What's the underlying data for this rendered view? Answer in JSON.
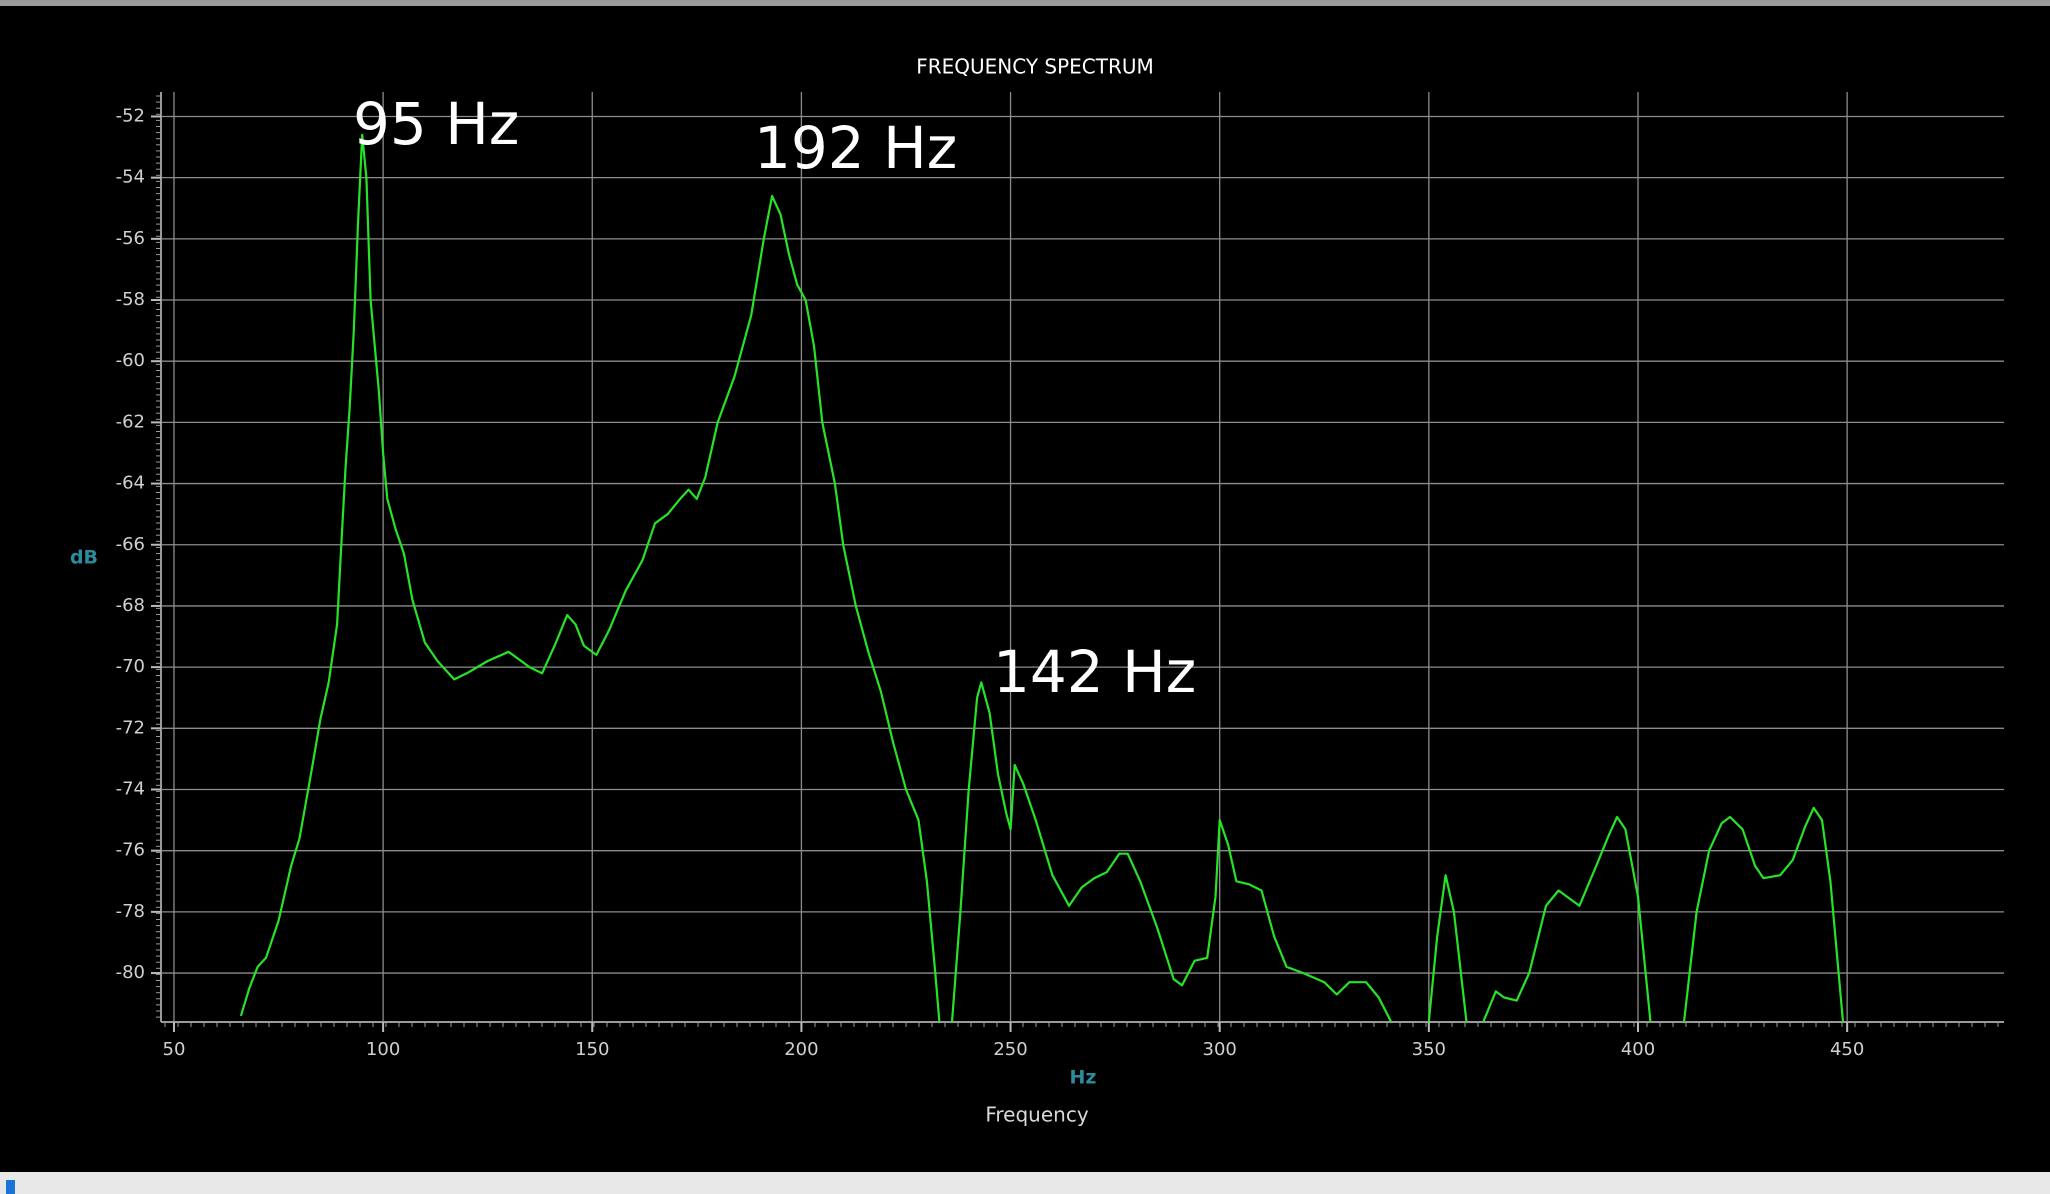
{
  "chart_data": {
    "type": "line",
    "title": "FREQUENCY SPECTRUM",
    "xlabel": "Frequency",
    "xunit": "Hz",
    "ylabel": "dB",
    "annotations": [
      "95 Hz",
      "192 Hz",
      "142 Hz"
    ],
    "color": "#27e327",
    "grid": true,
    "xlim": [
      46.9,
      487.5
    ],
    "ylim": [
      -81.6,
      -51.2
    ],
    "xticks": [
      50,
      100,
      150,
      200,
      250,
      300,
      350,
      400,
      450
    ],
    "yticks": [
      -52,
      -54,
      -56,
      -58,
      -60,
      -62,
      -64,
      -66,
      -68,
      -70,
      -72,
      -74,
      -76,
      -78,
      -80
    ],
    "x": [
      66,
      68,
      70,
      72,
      75,
      78,
      80,
      83,
      85,
      87,
      89,
      90,
      91,
      92,
      93,
      94,
      95,
      96,
      97,
      99,
      100,
      101,
      103,
      105,
      107,
      110,
      113,
      117,
      120,
      125,
      130,
      135,
      138,
      141,
      144,
      146,
      148,
      151,
      154,
      158,
      162,
      165,
      168,
      171,
      173,
      175,
      177,
      180,
      184,
      188,
      191,
      193,
      195,
      197,
      199,
      201,
      203,
      205,
      208,
      210,
      213,
      216,
      219,
      222,
      225,
      228,
      230,
      232,
      233,
      234,
      236,
      238,
      240,
      242,
      243,
      245,
      247,
      249,
      250,
      251,
      253,
      256,
      260,
      264,
      267,
      270,
      273,
      276,
      278,
      281,
      285,
      289,
      291,
      294,
      297,
      299,
      300,
      302,
      304,
      307,
      310,
      313,
      316,
      320,
      325,
      328,
      331,
      335,
      338,
      341,
      345,
      350,
      352,
      354,
      356,
      359,
      361,
      363,
      366,
      368,
      371,
      374,
      378,
      381,
      383,
      386,
      390,
      393,
      395,
      397,
      400,
      403,
      407,
      411,
      414,
      417,
      420,
      422,
      425,
      428,
      430,
      434,
      437,
      440,
      442,
      444,
      446,
      449
    ],
    "values": [
      -81.4,
      -80.5,
      -79.8,
      -79.5,
      -78.3,
      -76.5,
      -75.6,
      -73.3,
      -71.7,
      -70.5,
      -68.6,
      -66,
      -63.5,
      -61.5,
      -59,
      -55.5,
      -52.6,
      -54,
      -58,
      -61,
      -63,
      -64.5,
      -65.5,
      -66.3,
      -67.8,
      -69.2,
      -69.8,
      -70.4,
      -70.2,
      -69.8,
      -69.5,
      -70,
      -70.2,
      -69.3,
      -68.3,
      -68.6,
      -69.3,
      -69.6,
      -68.8,
      -67.5,
      -66.5,
      -65.3,
      -65,
      -64.5,
      -64.2,
      -64.5,
      -63.8,
      -62,
      -60.5,
      -58.5,
      -56,
      -54.6,
      -55.2,
      -56.5,
      -57.5,
      -58,
      -59.5,
      -62,
      -64,
      -66,
      -68,
      -69.5,
      -70.8,
      -72.5,
      -74,
      -75,
      -77,
      -80,
      -81.6,
      null,
      -81.6,
      -78,
      -74,
      -71,
      -70.5,
      -71.5,
      -73.5,
      -74.8,
      -75.3,
      -73.2,
      -73.8,
      -75,
      -76.8,
      -77.8,
      -77.2,
      -76.9,
      -76.7,
      -76.1,
      -76.1,
      -77,
      -78.5,
      -80.2,
      -80.4,
      -79.6,
      -79.5,
      -77.5,
      -75,
      -75.8,
      -77,
      -77.1,
      -77.3,
      -78.8,
      -79.8,
      -80,
      -80.3,
      -80.7,
      -80.3,
      -80.3,
      -80.8,
      -81.6,
      null,
      -81.6,
      -78.8,
      -76.8,
      -78,
      -81.6,
      null,
      -81.6,
      -80.6,
      -80.8,
      -80.9,
      -80,
      -77.8,
      -77.3,
      -77.5,
      -77.8,
      -76.5,
      -75.5,
      -74.9,
      -75.3,
      -77.5,
      -81.6,
      null,
      -81.6,
      -78,
      -76,
      -75.1,
      -74.9,
      -75.3,
      -76.5,
      -76.9,
      -76.8,
      -76.3,
      -75.2,
      -74.6,
      -75,
      -77,
      -81.6
    ]
  }
}
